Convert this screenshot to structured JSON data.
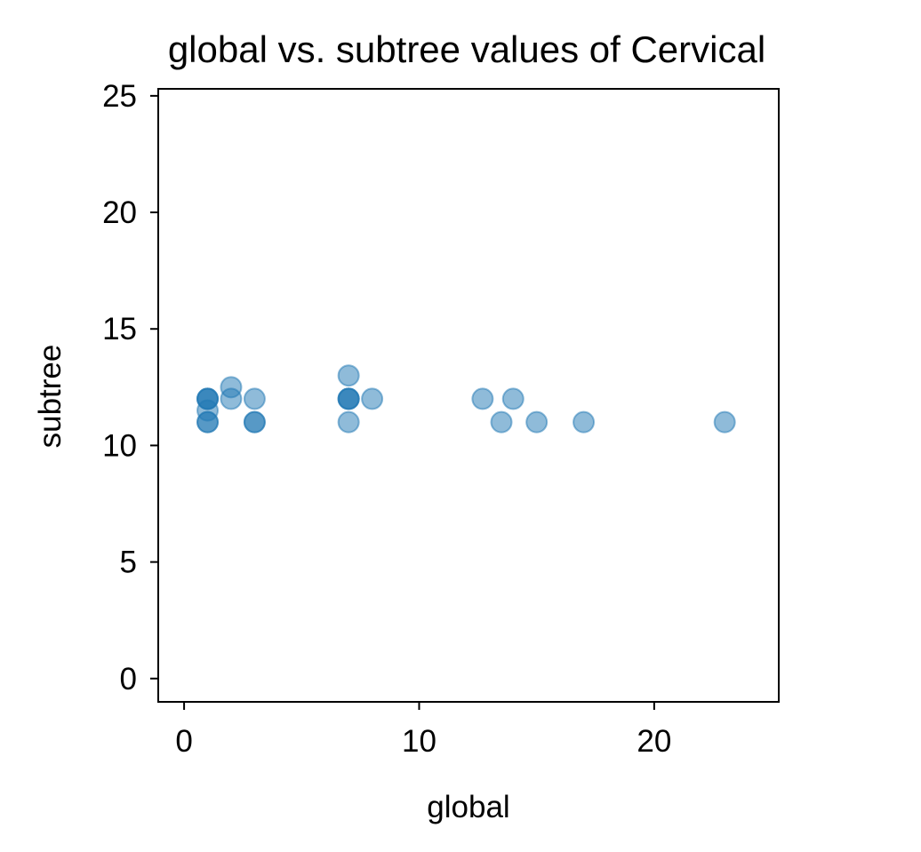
{
  "chart_data": {
    "type": "scatter",
    "title": "global vs. subtree values of Cervical",
    "xlabel": "global",
    "ylabel": "subtree",
    "xlim": [
      -1.1,
      25.3
    ],
    "ylim": [
      -1,
      25.3
    ],
    "xticks": [
      0,
      10,
      20
    ],
    "yticks": [
      0,
      5,
      10,
      15,
      20,
      25
    ],
    "grid": false,
    "series": [
      {
        "name": "points",
        "color": "#1f77b4",
        "x": [
          1,
          1,
          1,
          1,
          1,
          1,
          2,
          2,
          3,
          3,
          3,
          7,
          7,
          7,
          7,
          7,
          8,
          12.7,
          13.5,
          14,
          15,
          17,
          23
        ],
        "y": [
          12,
          12,
          11.5,
          11,
          11,
          12,
          12.5,
          12,
          12,
          11,
          11,
          13,
          12,
          12,
          12,
          11,
          12,
          12,
          11,
          12,
          11,
          11,
          11
        ]
      }
    ]
  }
}
